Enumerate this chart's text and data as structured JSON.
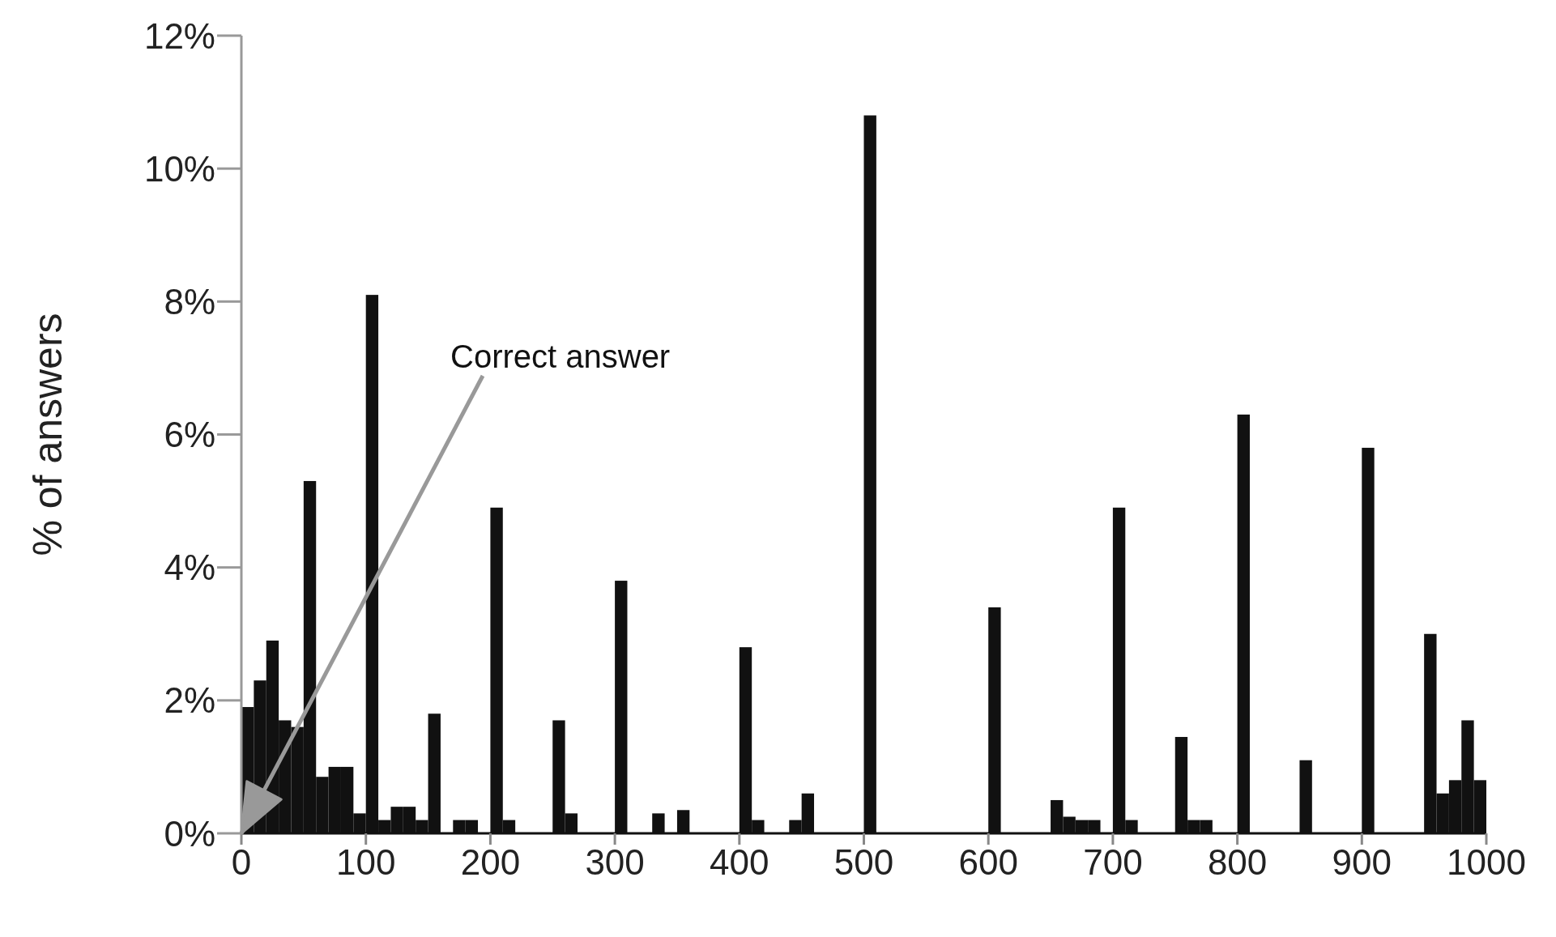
{
  "chart_data": {
    "type": "histogram",
    "ylabel": "% of answers",
    "bins": [
      0,
      10,
      20,
      30,
      40,
      50,
      60,
      70,
      80,
      90,
      100,
      110,
      120,
      130,
      140,
      150,
      160,
      170,
      180,
      190,
      200,
      210,
      220,
      230,
      240,
      250,
      260,
      270,
      280,
      290,
      300,
      310,
      320,
      330,
      340,
      350,
      360,
      370,
      380,
      390,
      400,
      410,
      420,
      430,
      440,
      450,
      460,
      470,
      480,
      490,
      500,
      510,
      520,
      530,
      540,
      550,
      560,
      570,
      580,
      590,
      600,
      610,
      620,
      630,
      640,
      650,
      660,
      670,
      680,
      690,
      700,
      710,
      720,
      730,
      740,
      750,
      760,
      770,
      780,
      790,
      800,
      810,
      820,
      830,
      840,
      850,
      860,
      870,
      880,
      890,
      900,
      910,
      920,
      930,
      940,
      950,
      960,
      970,
      980,
      990,
      1000
    ],
    "values": [
      1.9,
      2.3,
      2.9,
      1.7,
      1.6,
      5.3,
      0.85,
      1.0,
      1.0,
      0.3,
      8.1,
      0.2,
      0.4,
      0.4,
      0.2,
      1.8,
      0,
      0.2,
      0.2,
      0,
      4.9,
      0.2,
      0,
      0,
      0,
      1.7,
      0.3,
      0,
      0,
      0,
      3.8,
      0,
      0,
      0.3,
      0,
      0.35,
      0,
      0,
      0,
      0,
      2.8,
      0.2,
      0,
      0,
      0.2,
      0.6,
      0,
      0,
      0,
      0,
      10.8,
      0,
      0,
      0,
      0,
      0,
      0,
      0,
      0,
      0,
      3.4,
      0,
      0,
      0,
      0,
      0.5,
      0.25,
      0.2,
      0.2,
      0,
      4.9,
      0.2,
      0,
      0,
      0,
      1.45,
      0.2,
      0.2,
      0,
      0,
      6.3,
      0,
      0,
      0,
      0,
      1.1,
      0,
      0,
      0,
      0,
      5.8,
      0,
      0,
      0,
      0,
      3.0,
      0.6,
      0.8,
      1.7,
      0.8
    ],
    "color": "#111111",
    "xlim": [
      0,
      1000
    ],
    "xticks": [
      0,
      100,
      200,
      300,
      400,
      500,
      600,
      700,
      800,
      900,
      1000
    ],
    "ylim": [
      0,
      12
    ],
    "yticks": [
      {
        "value": 0,
        "label": "0%"
      },
      {
        "value": 2,
        "label": "2%"
      },
      {
        "value": 4,
        "label": "4%"
      },
      {
        "value": 6,
        "label": "6%"
      },
      {
        "value": 8,
        "label": "8%"
      },
      {
        "value": 10,
        "label": "10%"
      },
      {
        "value": 12,
        "label": "12%"
      }
    ],
    "annotations": [
      {
        "text": "Correct answer",
        "x": 0,
        "y": 0
      }
    ]
  }
}
